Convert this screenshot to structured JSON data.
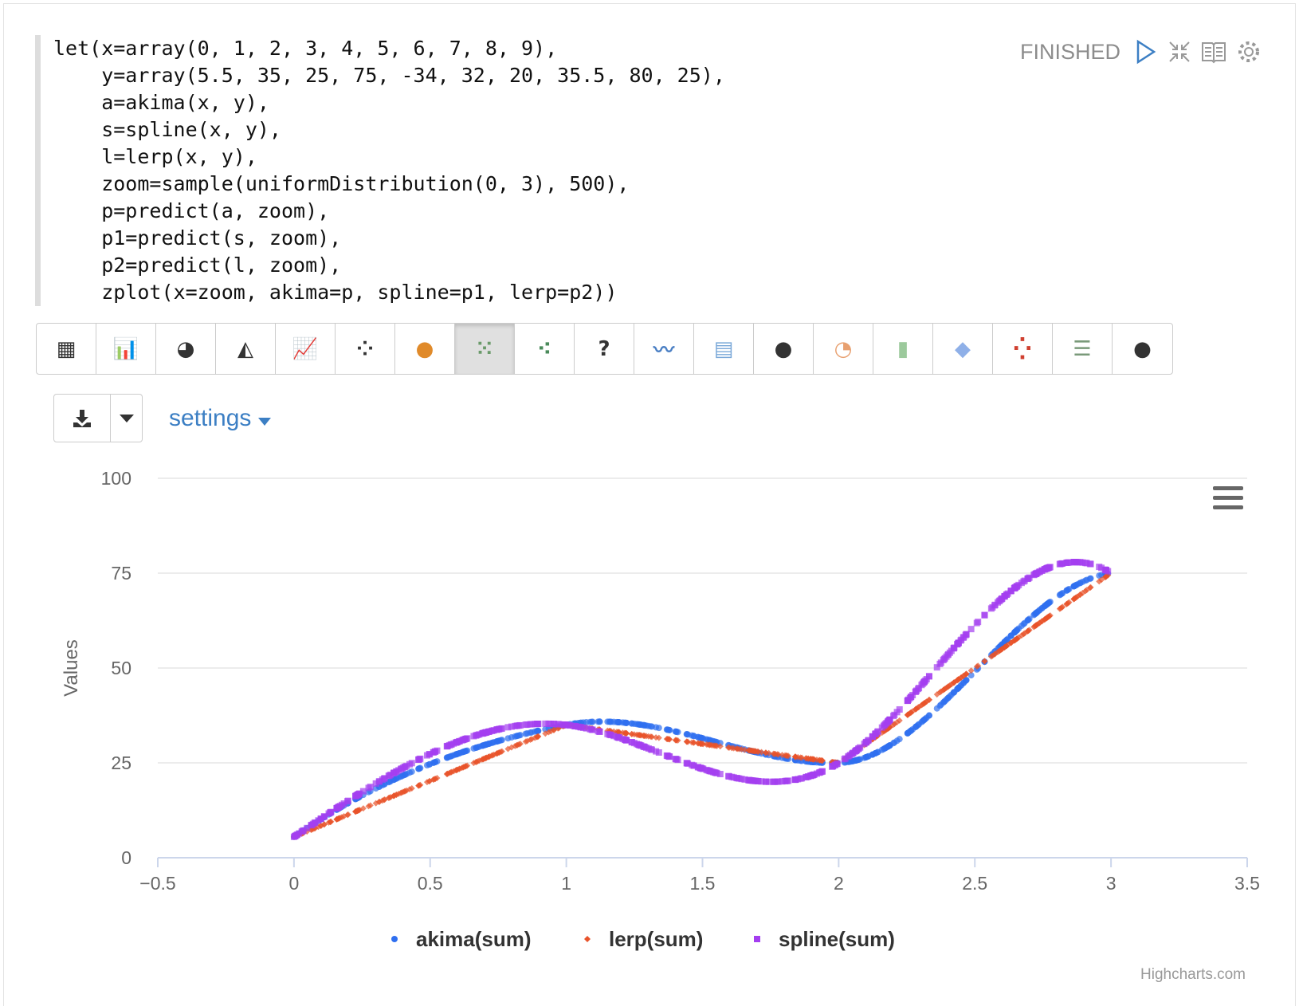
{
  "code_lines": [
    "let(x=array(0, 1, 2, 3, 4, 5, 6, 7, 8, 9),",
    "    y=array(5.5, 35, 25, 75, -34, 32, 20, 35.5, 80, 25),",
    "    a=akima(x, y),",
    "    s=spline(x, y),",
    "    l=lerp(x, y),",
    "    zoom=sample(uniformDistribution(0, 3), 500),",
    "    p=predict(a, zoom),",
    "    p1=predict(s, zoom),",
    "    p2=predict(l, zoom),",
    "    zplot(x=zoom, akima=p, spline=p1, lerp=p2))"
  ],
  "status": "FINISHED",
  "toolbar_icons": [
    "table-icon",
    "bar-chart-icon",
    "pie-chart-icon",
    "area-chart-icon",
    "line-chart-icon",
    "scatter-icon",
    "globe-orange-icon",
    "scatter-grid-icon",
    "scatter-chart-icon",
    "help-icon",
    "multi-line-icon",
    "heatmap-icon",
    "globe-icon",
    "pie-color-icon",
    "bar-color-icon",
    "area-color-icon",
    "dots-color-icon",
    "sliders-icon",
    "globe-icon-2"
  ],
  "active_toolbar_index": 7,
  "settings_label": "settings",
  "credit": "Highcharts.com",
  "chart_data": {
    "type": "scatter",
    "knots_x": [
      0,
      1,
      2,
      3,
      4,
      5,
      6,
      7,
      8,
      9
    ],
    "knots_y": [
      5.5,
      35,
      25,
      75,
      -34,
      32,
      20,
      35.5,
      80,
      25
    ],
    "sample_range": [
      0,
      3
    ],
    "sample_count": 500,
    "ylabel": "Values",
    "xlim": [
      -0.5,
      3.5
    ],
    "ylim": [
      0,
      100
    ],
    "xticks": [
      "−0.5",
      "0",
      "0.5",
      "1",
      "1.5",
      "2",
      "2.5",
      "3",
      "3.5"
    ],
    "yticks": [
      "0",
      "25",
      "50",
      "75",
      "100"
    ],
    "series": [
      {
        "name": "akima(sum)",
        "method": "akima",
        "color": "#2f6ff0",
        "marker": "circle"
      },
      {
        "name": "lerp(sum)",
        "method": "lerp",
        "color": "#e8522a",
        "marker": "diamond"
      },
      {
        "name": "spline(sum)",
        "method": "spline",
        "color": "#a43ef0",
        "marker": "square"
      }
    ],
    "legend": "bottom-center",
    "grid": true
  }
}
